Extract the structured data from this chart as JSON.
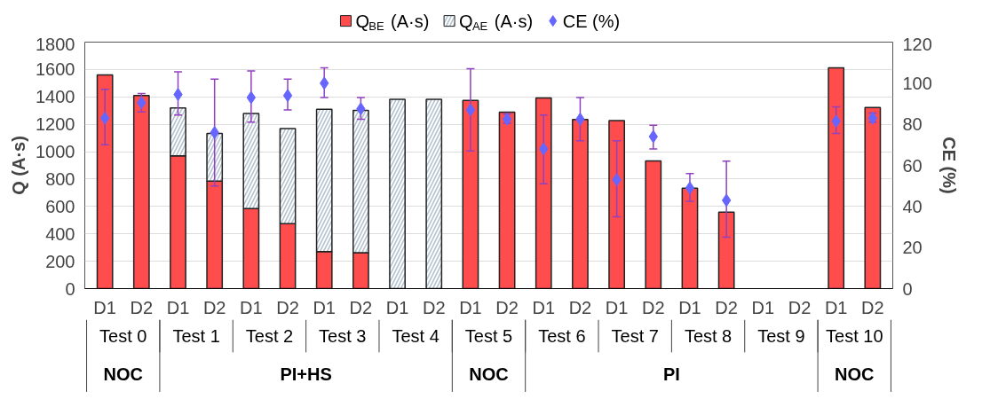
{
  "chart_data": {
    "type": "bar",
    "stacked": true,
    "ylabel": "Q (A·s)",
    "y2label": "CE (%)",
    "categories": [
      "D1",
      "D2",
      "D1",
      "D2",
      "D1",
      "D2",
      "D1",
      "D2",
      "D1",
      "D2",
      "D1",
      "D2",
      "D1",
      "D2",
      "D1",
      "D2",
      "D1",
      "D2",
      "D1",
      "D2",
      "D1",
      "D2"
    ],
    "annotations": [
      "Test 0",
      "Test 1",
      "Test 2",
      "Test 3",
      "Test 4",
      "Test 5",
      "Test 6",
      "Test 7",
      "Test 8",
      "Test 9",
      "Test 10",
      "NOC",
      "PI+HS",
      "NOC",
      "PI",
      "NOC"
    ],
    "series": [
      {
        "name": "Q$_{BE}$ (A·s)",
        "color": "#ff4d4d",
        "values": [
          1560,
          1410,
          970,
          785,
          585,
          475,
          270,
          262,
          null,
          null,
          1375,
          1288,
          1392,
          1235,
          1227,
          933,
          733,
          558,
          null,
          null,
          1612,
          1323
        ]
      },
      {
        "name": "Q$_{AE}$ (A·s)",
        "color": "#b4c2d0",
        "values": [
          null,
          null,
          350,
          348,
          694,
          694,
          1040,
          1040,
          1383,
          1383,
          null,
          null,
          null,
          null,
          null,
          null,
          null,
          null,
          null,
          null,
          null,
          null
        ]
      },
      {
        "name": "CE (%)",
        "type": "scatter",
        "axis": "y2",
        "marker": "diamond",
        "color": "#6666ff",
        "values": [
          83,
          90.5,
          94.5,
          76,
          93,
          94,
          100,
          87.5,
          null,
          null,
          87,
          82.5,
          68,
          82.5,
          53,
          74,
          49,
          43,
          null,
          null,
          81.5,
          83
        ],
        "errors": [
          [
            70,
            97
          ],
          [
            86,
            95
          ],
          [
            84.5,
            105.5
          ],
          [
            50,
            102
          ],
          [
            81,
            106
          ],
          [
            87,
            102
          ],
          [
            93,
            107.5
          ],
          [
            82.5,
            93
          ],
          null,
          null,
          [
            67,
            107
          ],
          [
            80.5,
            85
          ],
          [
            51,
            84.5
          ],
          [
            72,
            93
          ],
          [
            35,
            72
          ],
          [
            68,
            79.5
          ],
          [
            42.5,
            56
          ],
          [
            25,
            62
          ],
          null,
          null,
          [
            75.5,
            88.5
          ],
          [
            81,
            85.5
          ]
        ]
      }
    ],
    "ylim": [
      0,
      1800
    ],
    "yticks": [
      0,
      200,
      400,
      600,
      800,
      1000,
      1200,
      1400,
      1600,
      1800
    ],
    "y2lim": [
      0,
      120
    ],
    "y2ticks": [
      0,
      20,
      40,
      60,
      80,
      100,
      120
    ],
    "grid": "y",
    "legend": "top"
  }
}
